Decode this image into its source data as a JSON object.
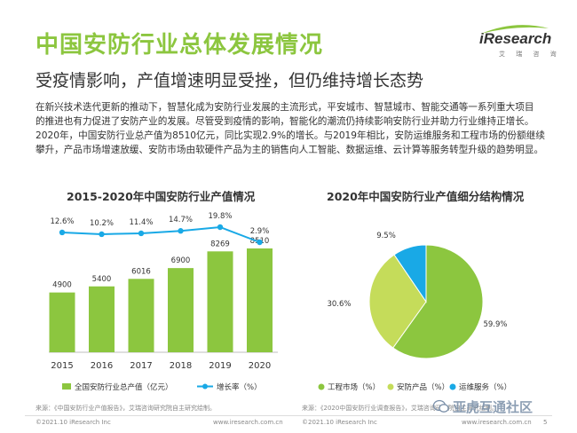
{
  "header": {
    "title": "中国安防行业总体发展情况",
    "subtitle": "受疫情影响，产值增速明显受挫，但仍维持增长态势"
  },
  "logo": {
    "brand": "iResearch",
    "sub": "艾 瑞 咨 询"
  },
  "body_text": [
    "在新兴技术迭代更新的推动下，智慧化成为安防行业发展的主流形式，平安城市、智慧城市、智能交通等一系列重大项目",
    "的推进也有力促进了安防产业的发展。尽管受到疫情的影响，智能化的潮流仍持续影响安防行业并助力行业维持正增长。",
    "2020年，中国安防行业总产值为8510亿元，同比实现2.9%的增长。与2019年相比，安防运维服务和工程市场的份额继续",
    "攀升，产品市场增速放缓、安防市场由软硬件产品为主的销售向人工智能、数据运维、云计算等服务转型升级的趋势明显。"
  ],
  "colors": {
    "accent_green": "#8cc63f",
    "bar_green": "#8cc63f",
    "line_blue": "#19a9e6",
    "pie_engineering": "#8cc63f",
    "pie_product": "#c5dc5a",
    "pie_service": "#19a9e6"
  },
  "chart_data": [
    {
      "type": "bar",
      "title": "2015-2020年中国安防行业产值情况",
      "categories": [
        "2015",
        "2016",
        "2017",
        "2018",
        "2019",
        "2020"
      ],
      "series": [
        {
          "name": "全国安防行业总产值（亿元）",
          "values": [
            4900,
            5400,
            6016,
            6900,
            8269,
            8510
          ],
          "data_labels": [
            "4900",
            "5400",
            "6016",
            "6900",
            "8269",
            "8510"
          ]
        },
        {
          "name": "增长率（%）",
          "type": "line",
          "values": [
            12.6,
            10.2,
            11.4,
            14.7,
            19.8,
            2.9
          ],
          "data_labels": [
            "12.6%",
            "10.2%",
            "11.4%",
            "14.7%",
            "19.8%",
            "2.9%"
          ]
        }
      ],
      "ylim": [
        0,
        9000
      ],
      "y2lim": [
        0,
        45
      ],
      "legend": "bottom",
      "grid": false,
      "source": "来源：《中国安防行业产值报告》，艾瑞咨询研究院自主研究绘制。"
    },
    {
      "type": "pie",
      "title": "2020年中国安防行业产值细分结构情况",
      "categories": [
        "工程市场（%）",
        "安防产品（%）",
        "运维服务（%）"
      ],
      "values": [
        59.9,
        30.6,
        9.5
      ],
      "data_labels": [
        "59.9%",
        "30.6%",
        "9.5%"
      ],
      "legend": "bottom",
      "source": "来源：《2020中国安防行业调查报告》，艾瑞咨询研究院自主研究绘制。"
    }
  ],
  "footer": {
    "left": "©2021.10 iResearch Inc",
    "center": "www.iresearch.com.cn",
    "center2": "©2021.10 iResearch Inc",
    "right": "www.iresearch.com.cn",
    "page": "5"
  },
  "watermark": "亚虎互通社区"
}
